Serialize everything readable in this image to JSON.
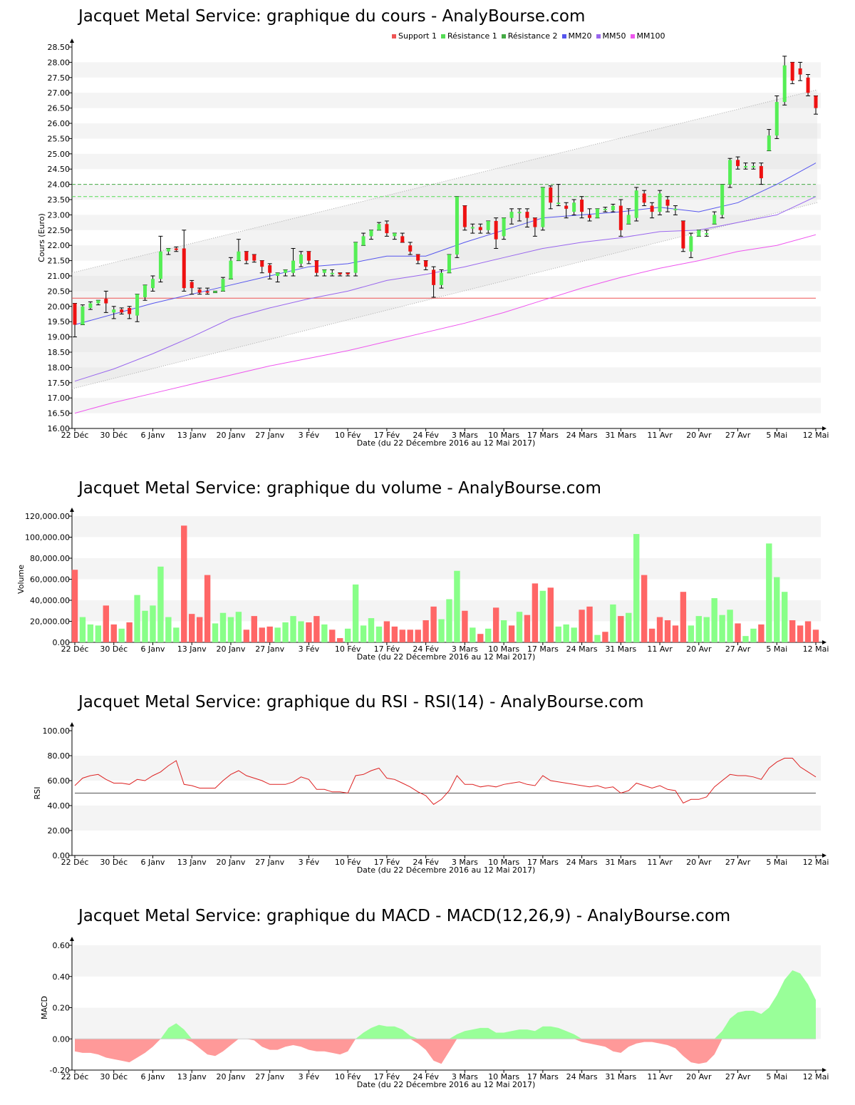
{
  "colors": {
    "up": "#55ee55",
    "down": "#ee1111",
    "vol_up": "#88ff88",
    "vol_down": "#ff6666",
    "support": "#ee5555",
    "res1": "#55dd55",
    "res2": "#44aa44",
    "mm20": "#5555ee",
    "mm50": "#9966ee",
    "mm100": "#ee55ee",
    "rsi_line": "#dd2222",
    "band": "#f2f2f2",
    "macd_up": "#99ff99",
    "macd_down": "#ff9999"
  },
  "x_ticks": [
    "22 Déc",
    "30 Déc",
    "6 Janv",
    "13 Janv",
    "20 Janv",
    "27 Janv",
    "3 Fév",
    "10 Fév",
    "17 Fév",
    "24 Fév",
    "3 Mars",
    "10 Mars",
    "17 Mars",
    "24 Mars",
    "31 Mars",
    "11 Avr",
    "20 Avr",
    "27 Avr",
    "5 Mai",
    "12 Mai"
  ],
  "x_tick_index": [
    0,
    5,
    10,
    15,
    20,
    25,
    30,
    35,
    40,
    45,
    50,
    55,
    60,
    65,
    70,
    75,
    80,
    85,
    90,
    95
  ],
  "x_title": "Date (du 22 Décembre 2016 au 12 Mai 2017)",
  "price": {
    "title": "Jacquet Metal Service: graphique du cours - AnalyBourse.com",
    "ylabel": "Cours (Euro)",
    "legend": [
      {
        "label": "Support 1",
        "color": "#ee5555"
      },
      {
        "label": "Résistance 1",
        "color": "#55dd55"
      },
      {
        "label": "Résistance 2",
        "color": "#44aa44"
      },
      {
        "label": "MM20",
        "color": "#5555ee"
      },
      {
        "label": "MM50",
        "color": "#9966ee"
      },
      {
        "label": "MM100",
        "color": "#ee55ee"
      }
    ],
    "y_ticks": [
      "16.00",
      "16.50",
      "17.00",
      "17.50",
      "18.00",
      "18.50",
      "19.00",
      "19.50",
      "20.00",
      "20.50",
      "21.00",
      "21.50",
      "22.00",
      "22.50",
      "23.00",
      "23.50",
      "24.00",
      "24.50",
      "25.00",
      "25.50",
      "26.00",
      "26.50",
      "27.00",
      "27.50",
      "28.00",
      "28.50"
    ]
  },
  "volume": {
    "title": "Jacquet Metal Service: graphique du volume - AnalyBourse.com",
    "ylabel": "Volume",
    "y_ticks": [
      "0.00",
      "20,000.00",
      "40,000.00",
      "60,000.00",
      "80,000.00",
      "100,000.00",
      "120,000.00"
    ]
  },
  "rsi": {
    "title": "Jacquet Metal Service: graphique du RSI - RSI(14) - AnalyBourse.com",
    "ylabel": "RSI",
    "y_ticks": [
      "0.00",
      "20.00",
      "40.00",
      "60.00",
      "80.00",
      "100.00"
    ]
  },
  "macd": {
    "title": "Jacquet Metal Service: graphique du MACD - MACD(12,26,9) - AnalyBourse.com",
    "ylabel": "MACD",
    "y_ticks": [
      "-0.20",
      "0.00",
      "0.20",
      "0.40",
      "0.60"
    ]
  },
  "chart_data": [
    {
      "type": "candlestick",
      "title": "Jacquet Metal Service: graphique du cours - AnalyBourse.com",
      "ylabel": "Cours (Euro)",
      "xlabel": "Date (du 22 Décembre 2016 au 12 Mai 2017)",
      "ylim": [
        16.0,
        28.6
      ],
      "support_1": 20.27,
      "resistance_1": 23.6,
      "resistance_2": 24.0,
      "candles": [
        [
          20.1,
          19.4,
          20.1,
          19.0
        ],
        [
          19.4,
          20.0,
          20.05,
          19.4
        ],
        [
          19.95,
          20.1,
          20.15,
          19.9
        ],
        [
          20.1,
          20.2,
          20.2,
          20.05
        ],
        [
          20.25,
          20.1,
          20.5,
          19.8
        ],
        [
          19.8,
          19.9,
          20.0,
          19.6
        ],
        [
          19.9,
          19.8,
          19.95,
          19.75
        ],
        [
          19.95,
          19.75,
          20.0,
          19.6
        ],
        [
          19.7,
          20.4,
          20.4,
          19.5
        ],
        [
          20.3,
          20.7,
          20.7,
          20.2
        ],
        [
          20.6,
          20.9,
          21.0,
          20.5
        ],
        [
          20.9,
          21.8,
          22.3,
          20.8
        ],
        [
          21.8,
          21.9,
          21.9,
          21.7
        ],
        [
          21.9,
          21.85,
          21.95,
          21.8
        ],
        [
          21.9,
          20.6,
          22.5,
          20.5
        ],
        [
          20.8,
          20.6,
          20.85,
          20.4
        ],
        [
          20.55,
          20.45,
          20.6,
          20.4
        ],
        [
          20.5,
          20.45,
          20.6,
          20.4
        ],
        [
          20.45,
          20.5,
          20.5,
          20.45
        ],
        [
          20.5,
          20.9,
          20.95,
          20.5
        ],
        [
          20.9,
          21.5,
          21.6,
          20.9
        ],
        [
          21.5,
          21.8,
          22.2,
          21.5
        ],
        [
          21.8,
          21.5,
          21.8,
          21.4
        ],
        [
          21.7,
          21.5,
          21.7,
          21.45
        ],
        [
          21.5,
          21.3,
          21.5,
          21.1
        ],
        [
          21.35,
          21.1,
          21.4,
          20.9
        ],
        [
          21.0,
          21.1,
          21.1,
          20.8
        ],
        [
          21.1,
          21.2,
          21.2,
          21.0
        ],
        [
          21.1,
          21.5,
          21.9,
          21.0
        ],
        [
          21.4,
          21.7,
          21.8,
          21.3
        ],
        [
          21.8,
          21.5,
          21.8,
          21.4
        ],
        [
          21.5,
          21.1,
          21.5,
          21.0
        ],
        [
          21.1,
          21.2,
          21.2,
          21.0
        ],
        [
          21.1,
          21.1,
          21.2,
          21.0
        ],
        [
          21.1,
          21.05,
          21.1,
          21.0
        ],
        [
          21.1,
          21.05,
          21.1,
          21.0
        ],
        [
          21.1,
          22.1,
          22.1,
          21.0
        ],
        [
          22.0,
          22.3,
          22.4,
          22.0
        ],
        [
          22.3,
          22.5,
          22.5,
          22.2
        ],
        [
          22.5,
          22.7,
          22.75,
          22.5
        ],
        [
          22.7,
          22.4,
          22.8,
          22.3
        ],
        [
          22.3,
          22.4,
          22.4,
          22.2
        ],
        [
          22.3,
          22.1,
          22.4,
          22.1
        ],
        [
          22.0,
          21.8,
          22.1,
          21.7
        ],
        [
          21.7,
          21.5,
          21.7,
          21.4
        ],
        [
          21.5,
          21.3,
          21.5,
          21.2
        ],
        [
          21.2,
          20.7,
          21.3,
          20.3
        ],
        [
          20.7,
          21.1,
          21.2,
          20.6
        ],
        [
          21.1,
          21.7,
          21.7,
          21.1
        ],
        [
          21.7,
          23.6,
          23.6,
          21.6
        ],
        [
          23.3,
          22.6,
          23.3,
          22.5
        ],
        [
          22.6,
          22.6,
          22.7,
          22.4
        ],
        [
          22.6,
          22.5,
          22.7,
          22.4
        ],
        [
          22.5,
          22.8,
          22.8,
          22.4
        ],
        [
          22.8,
          22.2,
          22.9,
          21.9
        ],
        [
          22.3,
          22.9,
          22.9,
          22.2
        ],
        [
          22.9,
          23.1,
          23.2,
          22.7
        ],
        [
          23.1,
          23.1,
          23.2,
          22.8
        ],
        [
          23.1,
          22.9,
          23.2,
          22.6
        ],
        [
          22.9,
          22.6,
          22.9,
          22.3
        ],
        [
          22.6,
          23.9,
          23.9,
          22.5
        ],
        [
          23.9,
          23.4,
          23.95,
          23.2
        ],
        [
          23.4,
          23.4,
          24.0,
          23.3
        ],
        [
          23.3,
          23.2,
          23.4,
          22.9
        ],
        [
          23.1,
          23.4,
          23.5,
          23.0
        ],
        [
          23.5,
          23.1,
          23.6,
          22.9
        ],
        [
          23.0,
          22.9,
          23.2,
          22.8
        ],
        [
          22.9,
          23.2,
          23.2,
          22.9
        ],
        [
          23.2,
          23.2,
          23.25,
          23.1
        ],
        [
          23.15,
          23.3,
          23.35,
          23.1
        ],
        [
          23.3,
          22.5,
          23.5,
          22.3
        ],
        [
          22.7,
          23.0,
          23.2,
          22.7
        ],
        [
          22.9,
          23.8,
          23.9,
          22.8
        ],
        [
          23.7,
          23.4,
          23.8,
          23.3
        ],
        [
          23.3,
          23.1,
          23.4,
          22.9
        ],
        [
          23.1,
          23.7,
          23.8,
          23.0
        ],
        [
          23.5,
          23.3,
          23.6,
          23.1
        ],
        [
          23.2,
          23.2,
          23.3,
          23.0
        ],
        [
          22.8,
          21.9,
          22.8,
          21.8
        ],
        [
          21.8,
          22.3,
          22.4,
          21.6
        ],
        [
          22.3,
          22.5,
          22.5,
          22.3
        ],
        [
          22.4,
          22.4,
          22.5,
          22.3
        ],
        [
          22.7,
          23.0,
          23.1,
          22.7
        ],
        [
          23.0,
          24.0,
          24.0,
          22.9
        ],
        [
          24.0,
          24.8,
          24.85,
          23.9
        ],
        [
          24.8,
          24.6,
          24.9,
          24.5
        ],
        [
          24.6,
          24.6,
          24.7,
          24.5
        ],
        [
          24.6,
          24.6,
          24.7,
          24.5
        ],
        [
          24.6,
          24.2,
          24.7,
          24.0
        ],
        [
          25.1,
          25.6,
          25.8,
          25.1
        ],
        [
          25.6,
          26.7,
          26.9,
          25.5
        ],
        [
          26.7,
          27.9,
          28.2,
          26.6
        ],
        [
          28.0,
          27.4,
          28.0,
          27.3
        ],
        [
          27.8,
          27.6,
          28.0,
          27.4
        ],
        [
          27.5,
          27.0,
          27.6,
          26.9
        ],
        [
          26.9,
          26.5,
          26.9,
          26.3
        ]
      ],
      "series": [
        {
          "name": "MM20",
          "x": [
            0,
            10,
            15,
            20,
            25,
            30,
            35,
            40,
            45,
            50,
            55,
            60,
            65,
            70,
            75,
            80,
            85,
            90,
            95
          ],
          "values": [
            19.4,
            20.1,
            20.4,
            20.7,
            21.0,
            21.3,
            21.4,
            21.65,
            21.65,
            22.1,
            22.5,
            22.9,
            23.0,
            23.1,
            23.25,
            23.1,
            23.4,
            24.0,
            24.7
          ]
        },
        {
          "name": "MM50",
          "x": [
            0,
            5,
            10,
            15,
            20,
            25,
            30,
            35,
            40,
            45,
            50,
            55,
            60,
            65,
            70,
            75,
            80,
            85,
            90,
            95
          ],
          "values": [
            17.55,
            17.95,
            18.45,
            19.0,
            19.6,
            19.95,
            20.25,
            20.5,
            20.85,
            21.05,
            21.3,
            21.6,
            21.9,
            22.1,
            22.25,
            22.45,
            22.5,
            22.75,
            23.0,
            23.6
          ]
        },
        {
          "name": "MM100",
          "x": [
            0,
            5,
            10,
            15,
            20,
            25,
            30,
            35,
            40,
            45,
            50,
            55,
            60,
            65,
            70,
            75,
            80,
            85,
            90,
            95
          ],
          "values": [
            16.5,
            16.85,
            17.15,
            17.45,
            17.75,
            18.05,
            18.3,
            18.55,
            18.85,
            19.15,
            19.45,
            19.8,
            20.2,
            20.6,
            20.95,
            21.25,
            21.5,
            21.8,
            22.0,
            22.35
          ]
        }
      ],
      "trend_channel": {
        "upper": [
          21.1,
          27.1
        ],
        "lower": [
          17.3,
          23.4
        ]
      }
    },
    {
      "type": "bar",
      "title": "Jacquet Metal Service: graphique du volume - AnalyBourse.com",
      "ylabel": "Volume",
      "ylim": [
        0,
        120000
      ],
      "values": [
        69000,
        24000,
        17000,
        16000,
        35000,
        17000,
        13000,
        19000,
        45000,
        30000,
        35000,
        72000,
        24000,
        14000,
        111000,
        27000,
        24000,
        64000,
        18000,
        28000,
        24000,
        29000,
        12000,
        25000,
        14000,
        15000,
        14000,
        19000,
        25000,
        20000,
        19000,
        25000,
        17000,
        12000,
        4000,
        13000,
        55000,
        16000,
        23000,
        15000,
        20000,
        15000,
        12000,
        12000,
        12000,
        21000,
        34000,
        22000,
        41000,
        68000,
        30000,
        14000,
        8000,
        13000,
        33000,
        21000,
        16000,
        29000,
        26000,
        56000,
        49000,
        52000,
        15000,
        17000,
        14000,
        31000,
        34000,
        7000,
        10000,
        36000,
        25000,
        28000,
        103000,
        64000,
        13000,
        24000,
        21000,
        16000,
        48000,
        16000,
        25000,
        24000,
        42000,
        26000,
        31000,
        18000,
        6000,
        13000,
        17000,
        94000,
        62000,
        48000,
        21000,
        16000,
        20000,
        12000
      ],
      "up": [
        false,
        true,
        true,
        true,
        false,
        false,
        true,
        false,
        true,
        true,
        true,
        true,
        true,
        true,
        false,
        false,
        false,
        false,
        true,
        true,
        true,
        true,
        false,
        false,
        false,
        false,
        true,
        true,
        true,
        true,
        false,
        false,
        true,
        false,
        false,
        true,
        true,
        true,
        true,
        true,
        false,
        false,
        false,
        false,
        false,
        false,
        false,
        true,
        true,
        true,
        false,
        true,
        false,
        true,
        false,
        true,
        false,
        true,
        false,
        false,
        true,
        false,
        true,
        true,
        true,
        false,
        false,
        true,
        false,
        true,
        false,
        true,
        true,
        false,
        false,
        false,
        false,
        false,
        false,
        true,
        true,
        true,
        true,
        true,
        true,
        false,
        true,
        true,
        false,
        true,
        true,
        true,
        false,
        false,
        false,
        false
      ]
    },
    {
      "type": "line",
      "title": "Jacquet Metal Service: graphique du RSI - RSI(14) - AnalyBourse.com",
      "ylabel": "RSI",
      "ylim": [
        0,
        100
      ],
      "reference_line": 50,
      "values": [
        56,
        62,
        64,
        65,
        61,
        58,
        58,
        57,
        61,
        60,
        64,
        67,
        72,
        76,
        57,
        56,
        54,
        54,
        54,
        60,
        65,
        68,
        64,
        62,
        60,
        57,
        57,
        57,
        59,
        63,
        61,
        53,
        53,
        51,
        51,
        50,
        64,
        65,
        68,
        70,
        62,
        61,
        58,
        55,
        51,
        48,
        41,
        45,
        52,
        64,
        57,
        57,
        55,
        56,
        55,
        57,
        58,
        59,
        57,
        56,
        64,
        60,
        59,
        58,
        57,
        56,
        55,
        56,
        54,
        55,
        50,
        52,
        58,
        56,
        54,
        56,
        53,
        52,
        42,
        45,
        45,
        47,
        55,
        60,
        65,
        64,
        64,
        63,
        61,
        70,
        75,
        78,
        78,
        71,
        67,
        63
      ]
    },
    {
      "type": "area",
      "title": "Jacquet Metal Service: graphique du MACD - MACD(12,26,9) - AnalyBourse.com",
      "ylabel": "MACD",
      "ylim": [
        -0.2,
        0.62
      ],
      "values": [
        -0.08,
        -0.09,
        -0.09,
        -0.1,
        -0.12,
        -0.13,
        -0.14,
        -0.15,
        -0.12,
        -0.09,
        -0.05,
        0.0,
        0.07,
        0.1,
        0.06,
        -0.02,
        -0.06,
        -0.1,
        -0.11,
        -0.08,
        -0.04,
        0.0,
        0.0,
        -0.01,
        -0.05,
        -0.07,
        -0.07,
        -0.05,
        -0.04,
        -0.05,
        -0.07,
        -0.08,
        -0.08,
        -0.09,
        -0.1,
        -0.08,
        0.0,
        0.04,
        0.07,
        0.09,
        0.08,
        0.08,
        0.06,
        0.02,
        -0.03,
        -0.07,
        -0.14,
        -0.16,
        -0.08,
        0.03,
        0.05,
        0.06,
        0.07,
        0.07,
        0.04,
        0.04,
        0.05,
        0.06,
        0.06,
        0.05,
        0.08,
        0.08,
        0.07,
        0.05,
        0.03,
        -0.02,
        -0.03,
        -0.04,
        -0.05,
        -0.08,
        -0.09,
        -0.05,
        -0.03,
        -0.02,
        -0.02,
        -0.03,
        -0.04,
        -0.06,
        -0.11,
        -0.15,
        -0.16,
        -0.15,
        -0.1,
        0.05,
        0.13,
        0.17,
        0.18,
        0.18,
        0.16,
        0.2,
        0.28,
        0.38,
        0.44,
        0.42,
        0.35,
        0.25
      ]
    }
  ]
}
